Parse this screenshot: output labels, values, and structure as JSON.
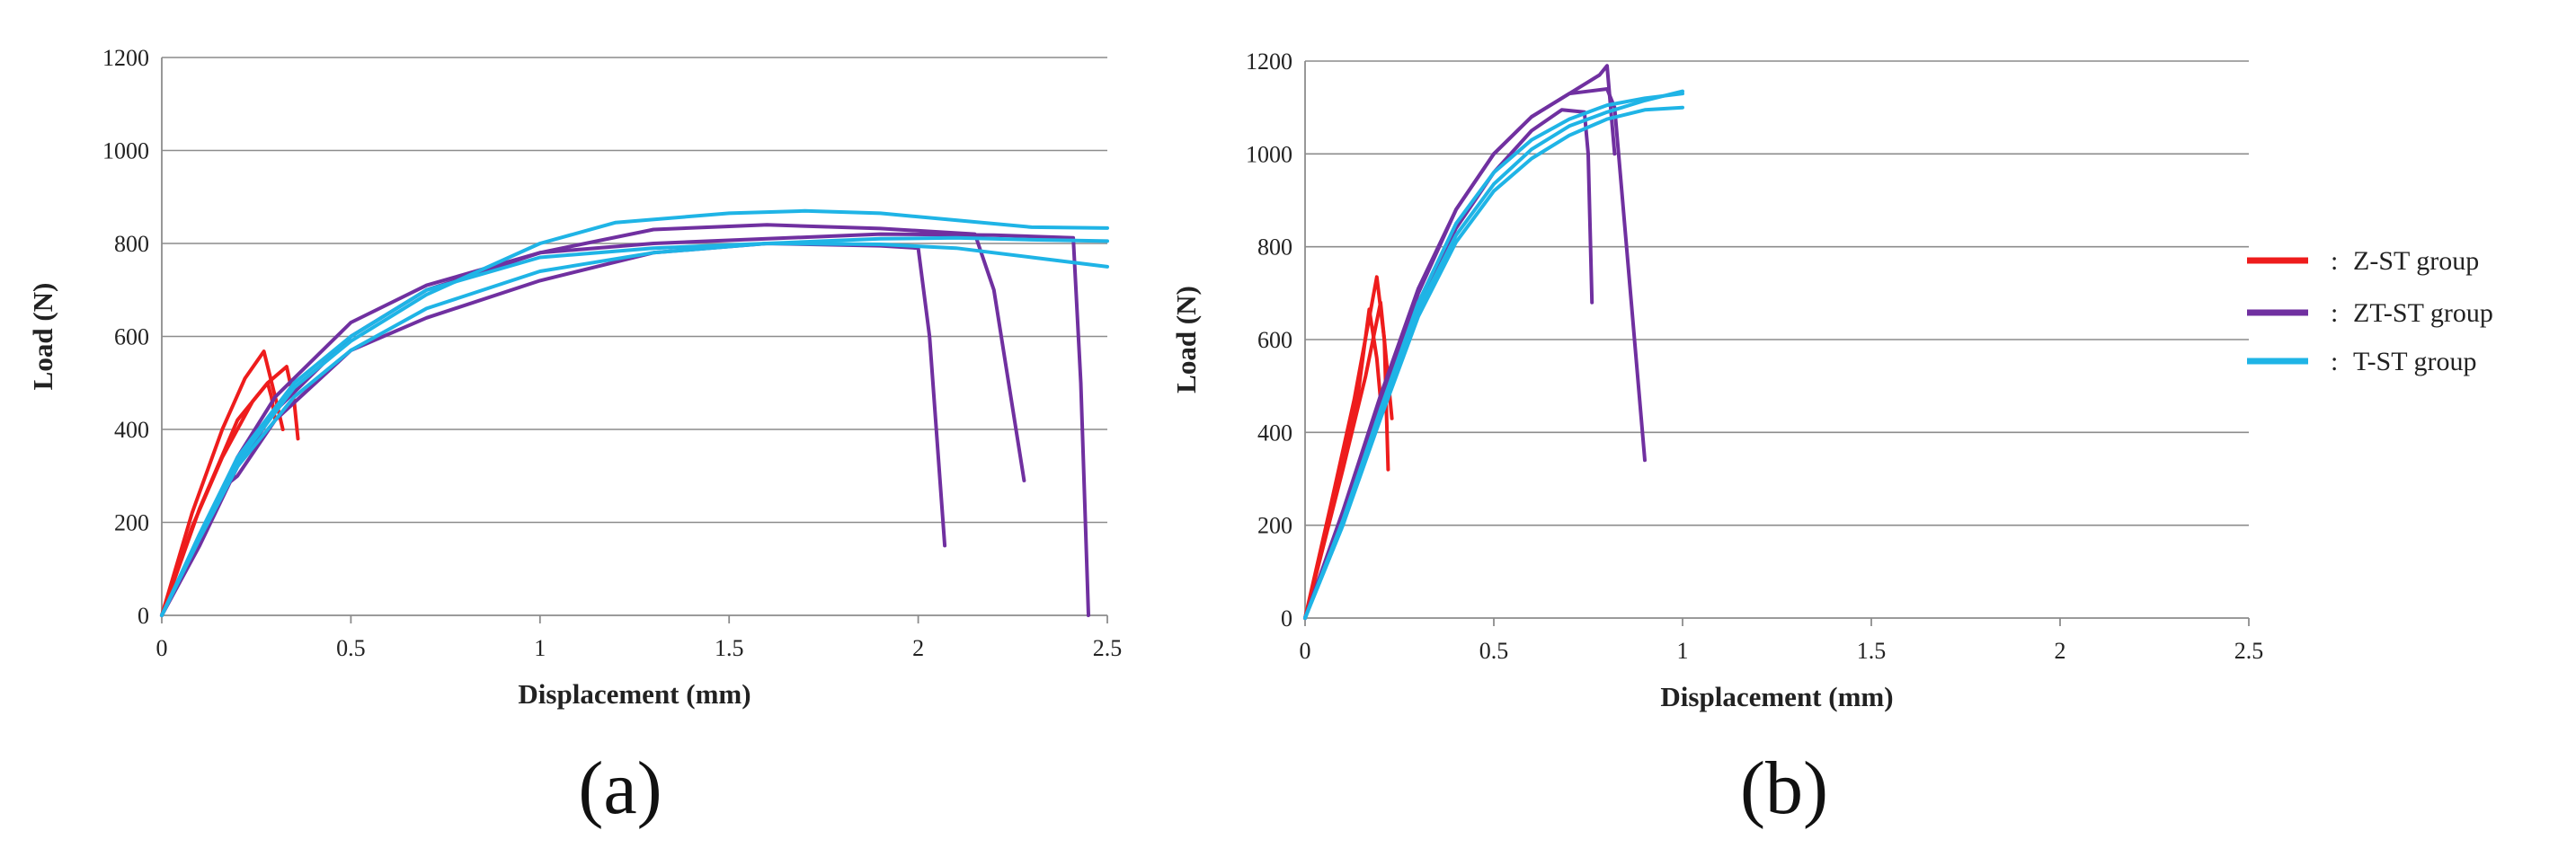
{
  "colors": {
    "Z-ST": "#ee1c1c",
    "ZT-ST": "#7030a0",
    "T-ST": "#1fb4e6",
    "grid": "#8c8c8c",
    "text": "#222222"
  },
  "legend": [
    {
      "group": "Z-ST",
      "label": "Z-ST group",
      "separator": ":"
    },
    {
      "group": "ZT-ST",
      "label": "ZT-ST group",
      "separator": ":"
    },
    {
      "group": "T-ST",
      "label": "T-ST group",
      "separator": ":"
    }
  ],
  "chart_data": [
    {
      "type": "line",
      "panel": "(a)",
      "xlabel": "Displacement (mm)",
      "ylabel": "Load (N)",
      "xlim": [
        0,
        2.5
      ],
      "ylim": [
        0,
        1200
      ],
      "xticks": [
        0,
        0.5,
        1,
        1.5,
        2,
        2.5
      ],
      "xtick_labels": [
        "0",
        "0.5",
        "1",
        "1.5",
        "2",
        "2.5"
      ],
      "yticks": [
        0,
        200,
        400,
        600,
        800,
        1000,
        1200
      ],
      "ytick_labels": [
        "0",
        "200",
        "400",
        "600",
        "800",
        "1000",
        "1200"
      ],
      "grid": "horizontal",
      "series": [
        {
          "name": "Z-ST 1",
          "group": "Z-ST",
          "points": [
            [
              0,
              0
            ],
            [
              0.08,
              220
            ],
            [
              0.16,
              400
            ],
            [
              0.22,
              510
            ],
            [
              0.27,
              568
            ],
            [
              0.3,
              470
            ],
            [
              0.32,
              400
            ]
          ]
        },
        {
          "name": "Z-ST 2",
          "group": "Z-ST",
          "points": [
            [
              0,
              0
            ],
            [
              0.1,
              230
            ],
            [
              0.2,
              420
            ],
            [
              0.28,
              500
            ],
            [
              0.33,
              535
            ],
            [
              0.35,
              460
            ],
            [
              0.36,
              380
            ]
          ]
        },
        {
          "name": "Z-ST 3",
          "group": "Z-ST",
          "points": [
            [
              0,
              0
            ],
            [
              0.08,
              190
            ],
            [
              0.16,
              340
            ],
            [
              0.24,
              460
            ],
            [
              0.28,
              500
            ],
            [
              0.29,
              470
            ],
            [
              0.3,
              420
            ]
          ]
        },
        {
          "name": "ZT-ST 1",
          "group": "ZT-ST",
          "points": [
            [
              0,
              0
            ],
            [
              0.1,
              150
            ],
            [
              0.2,
              320
            ],
            [
              0.3,
              440
            ],
            [
              0.5,
              600
            ],
            [
              0.7,
              700
            ],
            [
              1,
              780
            ],
            [
              1.3,
              830
            ],
            [
              1.6,
              840
            ],
            [
              1.9,
              832
            ],
            [
              2.15,
              820
            ],
            [
              2.2,
              700
            ],
            [
              2.28,
              290
            ]
          ]
        },
        {
          "name": "ZT-ST 2",
          "group": "ZT-ST",
          "points": [
            [
              0,
              0
            ],
            [
              0.1,
              160
            ],
            [
              0.17,
              280
            ],
            [
              0.2,
              300
            ],
            [
              0.3,
              420
            ],
            [
              0.5,
              570
            ],
            [
              0.7,
              640
            ],
            [
              1,
              720
            ],
            [
              1.3,
              780
            ],
            [
              1.6,
              800
            ],
            [
              1.9,
              795
            ],
            [
              2.0,
              790
            ],
            [
              2.03,
              600
            ],
            [
              2.07,
              150
            ]
          ]
        },
        {
          "name": "ZT-ST 3",
          "group": "ZT-ST",
          "points": [
            [
              0,
              0
            ],
            [
              0.1,
              170
            ],
            [
              0.2,
              340
            ],
            [
              0.3,
              470
            ],
            [
              0.5,
              630
            ],
            [
              0.7,
              710
            ],
            [
              1,
              780
            ],
            [
              1.3,
              800
            ],
            [
              1.6,
              810
            ],
            [
              1.9,
              820
            ],
            [
              2.2,
              818
            ],
            [
              2.41,
              812
            ],
            [
              2.43,
              500
            ],
            [
              2.45,
              0
            ]
          ]
        },
        {
          "name": "T-ST 1",
          "group": "T-ST",
          "points": [
            [
              0,
              0
            ],
            [
              0.1,
              170
            ],
            [
              0.2,
              330
            ],
            [
              0.35,
              490
            ],
            [
              0.5,
              590
            ],
            [
              0.7,
              690
            ],
            [
              1,
              800
            ],
            [
              1.2,
              845
            ],
            [
              1.5,
              865
            ],
            [
              1.7,
              870
            ],
            [
              1.9,
              865
            ],
            [
              2.1,
              850
            ],
            [
              2.3,
              835
            ],
            [
              2.5,
              833
            ]
          ]
        },
        {
          "name": "T-ST 2",
          "group": "T-ST",
          "points": [
            [
              0,
              0
            ],
            [
              0.1,
              165
            ],
            [
              0.2,
              320
            ],
            [
              0.35,
              470
            ],
            [
              0.5,
              570
            ],
            [
              0.7,
              660
            ],
            [
              1,
              740
            ],
            [
              1.3,
              780
            ],
            [
              1.6,
              800
            ],
            [
              1.9,
              810
            ],
            [
              2.1,
              812
            ],
            [
              2.3,
              808
            ],
            [
              2.5,
              805
            ]
          ]
        },
        {
          "name": "T-ST 3",
          "group": "T-ST",
          "points": [
            [
              0,
              0
            ],
            [
              0.1,
              175
            ],
            [
              0.2,
              340
            ],
            [
              0.35,
              500
            ],
            [
              0.5,
              600
            ],
            [
              0.7,
              700
            ],
            [
              1,
              770
            ],
            [
              1.3,
              790
            ],
            [
              1.6,
              800
            ],
            [
              1.9,
              798
            ],
            [
              2.1,
              790
            ],
            [
              2.3,
              770
            ],
            [
              2.5,
              750
            ]
          ]
        }
      ]
    },
    {
      "type": "line",
      "panel": "(b)",
      "xlabel": "Displacement (mm)",
      "ylabel": "Load (N)",
      "xlim": [
        0,
        2.5
      ],
      "ylim": [
        0,
        1200
      ],
      "xticks": [
        0,
        0.5,
        1,
        1.5,
        2,
        2.5
      ],
      "xtick_labels": [
        "0",
        "0.5",
        "1",
        "1.5",
        "2",
        "2.5"
      ],
      "yticks": [
        0,
        200,
        400,
        600,
        800,
        1000,
        1200
      ],
      "ytick_labels": [
        "0",
        "200",
        "400",
        "600",
        "800",
        "1000",
        "1200"
      ],
      "grid": "horizontal",
      "series": [
        {
          "name": "Z-ST 1",
          "group": "Z-ST",
          "points": [
            [
              0,
              0
            ],
            [
              0.07,
              250
            ],
            [
              0.13,
              470
            ],
            [
              0.19,
              735
            ],
            [
              0.21,
              600
            ],
            [
              0.23,
              430
            ]
          ]
        },
        {
          "name": "Z-ST 2",
          "group": "Z-ST",
          "points": [
            [
              0,
              0
            ],
            [
              0.08,
              260
            ],
            [
              0.14,
              480
            ],
            [
              0.17,
              665
            ],
            [
              0.19,
              560
            ],
            [
              0.2,
              470
            ]
          ]
        },
        {
          "name": "Z-ST 3",
          "group": "Z-ST",
          "points": [
            [
              0,
              0
            ],
            [
              0.1,
              320
            ],
            [
              0.16,
              520
            ],
            [
              0.2,
              680
            ],
            [
              0.21,
              600
            ],
            [
              0.22,
              320
            ]
          ]
        },
        {
          "name": "ZT-ST 1",
          "group": "ZT-ST",
          "points": [
            [
              0,
              0
            ],
            [
              0.1,
              220
            ],
            [
              0.2,
              470
            ],
            [
              0.3,
              700
            ],
            [
              0.4,
              880
            ],
            [
              0.5,
              1000
            ],
            [
              0.6,
              1080
            ],
            [
              0.7,
              1130
            ],
            [
              0.78,
              1170
            ],
            [
              0.8,
              1190
            ],
            [
              0.82,
              1000
            ]
          ]
        },
        {
          "name": "ZT-ST 2",
          "group": "ZT-ST",
          "points": [
            [
              0,
              0
            ],
            [
              0.1,
              215
            ],
            [
              0.2,
              460
            ],
            [
              0.3,
              680
            ],
            [
              0.4,
              840
            ],
            [
              0.5,
              960
            ],
            [
              0.6,
              1050
            ],
            [
              0.68,
              1095
            ],
            [
              0.74,
              1090
            ],
            [
              0.75,
              1000
            ],
            [
              0.76,
              680
            ]
          ]
        },
        {
          "name": "ZT-ST 3",
          "group": "ZT-ST",
          "points": [
            [
              0,
              0
            ],
            [
              0.1,
              230
            ],
            [
              0.2,
              480
            ],
            [
              0.3,
              710
            ],
            [
              0.4,
              880
            ],
            [
              0.5,
              1000
            ],
            [
              0.6,
              1080
            ],
            [
              0.7,
              1130
            ],
            [
              0.8,
              1140
            ],
            [
              0.82,
              1100
            ],
            [
              0.9,
              340
            ]
          ]
        },
        {
          "name": "T-ST 1",
          "group": "T-ST",
          "points": [
            [
              0,
              0
            ],
            [
              0.1,
              200
            ],
            [
              0.2,
              430
            ],
            [
              0.3,
              650
            ],
            [
              0.4,
              810
            ],
            [
              0.5,
              920
            ],
            [
              0.6,
              990
            ],
            [
              0.7,
              1040
            ],
            [
              0.8,
              1075
            ],
            [
              0.9,
              1095
            ],
            [
              1,
              1100
            ]
          ]
        },
        {
          "name": "T-ST 2",
          "group": "T-ST",
          "points": [
            [
              0,
              0
            ],
            [
              0.1,
              210
            ],
            [
              0.2,
              450
            ],
            [
              0.3,
              680
            ],
            [
              0.4,
              850
            ],
            [
              0.5,
              960
            ],
            [
              0.6,
              1030
            ],
            [
              0.7,
              1075
            ],
            [
              0.8,
              1105
            ],
            [
              0.9,
              1120
            ],
            [
              1,
              1130
            ]
          ]
        },
        {
          "name": "T-ST 3",
          "group": "T-ST",
          "points": [
            [
              0,
              0
            ],
            [
              0.1,
              200
            ],
            [
              0.2,
              440
            ],
            [
              0.3,
              665
            ],
            [
              0.4,
              825
            ],
            [
              0.5,
              935
            ],
            [
              0.6,
              1010
            ],
            [
              0.7,
              1060
            ],
            [
              0.8,
              1090
            ],
            [
              0.9,
              1115
            ],
            [
              1,
              1135
            ]
          ]
        }
      ]
    }
  ]
}
